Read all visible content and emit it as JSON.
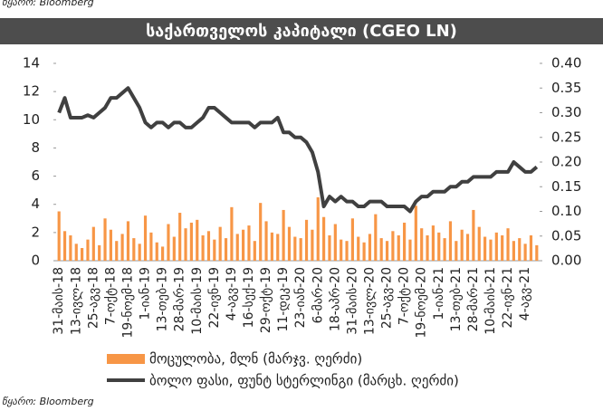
{
  "source_top": "წყარო: Bloomberg",
  "chart_data": {
    "type": "bar",
    "title": "საქართველოს კაპიტალი (CGEO LN)",
    "categories": [
      "31-მაის-18",
      null,
      null,
      "13-ივლ-18",
      null,
      null,
      "25-აგვ-18",
      null,
      null,
      "7-ოქტ-18",
      null,
      null,
      "19-ნოემ-18",
      null,
      null,
      "1-იან-19",
      null,
      null,
      "13-თებ-19",
      null,
      null,
      "28-მარ-19",
      null,
      null,
      "10-მაის-19",
      null,
      null,
      "22-ივნ-19",
      null,
      null,
      "4-აგვ-19",
      null,
      null,
      "16-სექ-19",
      null,
      null,
      "29-ოქტ-19",
      null,
      null,
      "11-დეკ-19",
      null,
      null,
      "23-იან-20",
      null,
      null,
      "6-მარ-20",
      null,
      null,
      "18-აპრ-20",
      null,
      null,
      "31-მაის-20",
      null,
      null,
      "13-ივლ-20",
      null,
      null,
      "25-აგვ-20",
      null,
      null,
      "7-ოქტ-20",
      null,
      null,
      "19-ნოემ-20",
      null,
      null,
      "1-იან-21",
      null,
      null,
      "13-თებ-21",
      null,
      null,
      "28-მარ-21",
      null,
      null,
      "10-მაის-21",
      null,
      null,
      "22-ივნ-21",
      null,
      null,
      "4-აგვ-21",
      null,
      null
    ],
    "series": [
      {
        "name": "მოცულობა, მლნ (მარჯვ. ღერძი)",
        "type": "bar",
        "color": "#f79646",
        "values": [
          3.5,
          2.1,
          1.8,
          1.2,
          0.9,
          1.5,
          2.4,
          1.1,
          3.0,
          2.2,
          1.4,
          1.9,
          2.8,
          1.6,
          1.2,
          3.2,
          2.0,
          1.3,
          1.0,
          2.6,
          1.7,
          3.4,
          2.3,
          2.7,
          2.9,
          1.8,
          2.1,
          1.5,
          2.4,
          1.6,
          3.8,
          1.9,
          2.2,
          2.5,
          1.4,
          4.1,
          2.8,
          2.0,
          1.9,
          3.6,
          2.4,
          1.7,
          1.6,
          2.9,
          2.2,
          4.5,
          3.1,
          1.8,
          2.6,
          1.5,
          1.4,
          3.0,
          1.7,
          1.3,
          1.9,
          3.3,
          1.6,
          1.4,
          2.1,
          1.8,
          2.7,
          1.5,
          3.9,
          2.3,
          1.8,
          2.5,
          2.0,
          1.6,
          2.8,
          1.4,
          2.2,
          1.9,
          3.6,
          2.4,
          1.7,
          1.5,
          2.0,
          1.8,
          2.3,
          1.4,
          1.6,
          1.2,
          1.8,
          1.1
        ]
      },
      {
        "name": "ბოლო ფასი, ფუნტ სტერლინგი (მარცხ. ღერძი)",
        "type": "line",
        "axis": "y2",
        "color": "#404040",
        "values": [
          0.3,
          0.33,
          0.29,
          0.29,
          0.29,
          0.295,
          0.29,
          0.3,
          0.31,
          0.33,
          0.33,
          0.34,
          0.35,
          0.33,
          0.31,
          0.28,
          0.27,
          0.28,
          0.28,
          0.27,
          0.28,
          0.28,
          0.27,
          0.27,
          0.28,
          0.29,
          0.31,
          0.31,
          0.3,
          0.29,
          0.28,
          0.28,
          0.28,
          0.28,
          0.27,
          0.28,
          0.28,
          0.28,
          0.29,
          0.26,
          0.26,
          0.25,
          0.25,
          0.24,
          0.22,
          0.18,
          0.11,
          0.13,
          0.12,
          0.13,
          0.12,
          0.12,
          0.11,
          0.11,
          0.12,
          0.12,
          0.12,
          0.11,
          0.11,
          0.11,
          0.11,
          0.1,
          0.12,
          0.13,
          0.13,
          0.14,
          0.14,
          0.14,
          0.15,
          0.15,
          0.16,
          0.16,
          0.17,
          0.17,
          0.17,
          0.17,
          0.18,
          0.18,
          0.18,
          0.2,
          0.19,
          0.18,
          0.18,
          0.19
        ]
      }
    ],
    "ylim": [
      0,
      14
    ],
    "yticks": [
      0,
      2,
      4,
      6,
      8,
      10,
      12,
      14
    ],
    "y2lim": [
      0,
      0.4
    ],
    "y2ticks": [
      {
        "value": 0,
        "label": "0.00"
      },
      0.05,
      {
        "value": 0.1,
        "label": "0.10"
      },
      0.15,
      {
        "value": 0.2,
        "label": "0.20"
      },
      0.25,
      {
        "value": 0.3,
        "label": "0.30"
      },
      0.35,
      {
        "value": 0.4,
        "label": "0.40"
      }
    ],
    "grid": false,
    "source": "წყარო: Bloomberg"
  }
}
